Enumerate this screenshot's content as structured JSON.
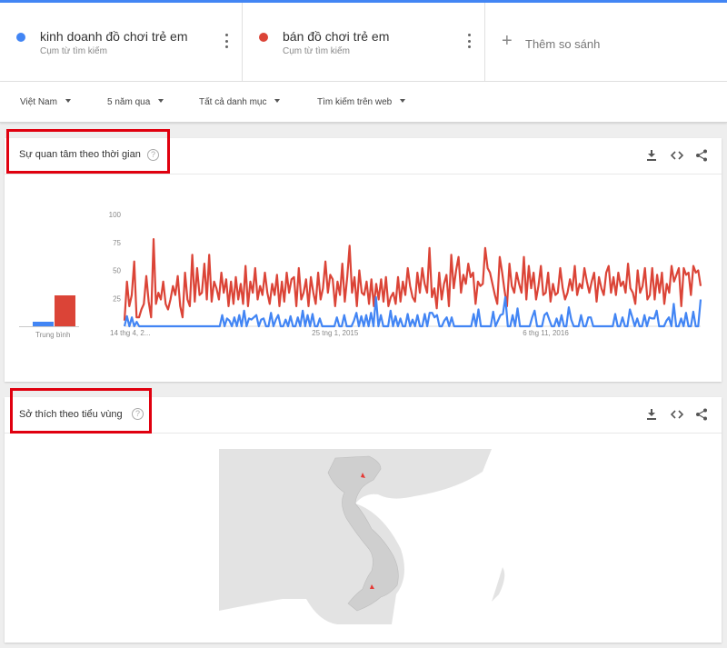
{
  "terms": [
    {
      "name": "kinh doanh đồ chơi trẻ em",
      "subtitle": "Cụm từ tìm kiếm",
      "color": "#4285f4"
    },
    {
      "name": "bán đồ chơi trẻ em",
      "subtitle": "Cụm từ tìm kiếm",
      "color": "#db4437"
    }
  ],
  "add_compare": {
    "label": "Thêm so sánh",
    "icon": "plus-icon"
  },
  "filters": [
    "Việt Nam",
    "5 năm qua",
    "Tất cả danh mục",
    "Tìm kiếm trên web"
  ],
  "interest_over_time": {
    "title": "Sự quan tâm theo thời gian",
    "average_label": "Trung bình",
    "icons": [
      "download-icon",
      "embed-code-icon",
      "share-icon"
    ]
  },
  "subregion_interest": {
    "title": "Sở thích theo tiểu vùng",
    "icons": [
      "download-icon",
      "embed-code-icon",
      "share-icon"
    ]
  },
  "chart_data": {
    "type": "line",
    "ylim": [
      0,
      100
    ],
    "y_ticks": [
      "100",
      "75",
      "50",
      "25"
    ],
    "x_tick_labels": [
      "14 thg 4, 2...",
      "25 tng 1, 2015",
      "6 thg 11, 2016"
    ],
    "x_tick_index": [
      0,
      87,
      174
    ],
    "averages": [
      {
        "name": "kinh doanh đồ chơi trẻ em",
        "value": 5,
        "color": "#4285f4"
      },
      {
        "name": "bán đồ chơi trẻ em",
        "value": 36,
        "color": "#db4437"
      }
    ],
    "series": [
      {
        "name": "bán đồ chơi trẻ em",
        "color": "#db4437",
        "values": [
          5,
          40,
          18,
          28,
          58,
          8,
          8,
          15,
          20,
          45,
          22,
          8,
          78,
          20,
          30,
          24,
          40,
          20,
          15,
          24,
          36,
          28,
          45,
          18,
          8,
          48,
          24,
          18,
          64,
          22,
          52,
          28,
          30,
          56,
          24,
          64,
          22,
          40,
          34,
          24,
          48,
          30,
          42,
          18,
          40,
          20,
          44,
          24,
          38,
          20,
          54,
          18,
          40,
          30,
          52,
          24,
          36,
          28,
          48,
          30,
          20,
          38,
          28,
          46,
          18,
          40,
          22,
          48,
          30,
          42,
          44,
          18,
          52,
          24,
          30,
          42,
          18,
          44,
          30,
          20,
          48,
          24,
          34,
          58,
          30,
          46,
          42,
          18,
          40,
          28,
          56,
          22,
          44,
          72,
          30,
          44,
          18,
          50,
          30,
          28,
          40,
          20,
          42,
          18,
          38,
          24,
          42,
          22,
          44,
          18,
          26,
          30,
          20,
          44,
          22,
          40,
          28,
          52,
          36,
          26,
          22,
          48,
          30,
          52,
          38,
          30,
          70,
          26,
          34,
          16,
          48,
          24,
          38,
          46,
          18,
          64,
          34,
          50,
          62,
          30,
          46,
          38,
          56,
          44,
          48,
          20,
          40,
          36,
          38,
          70,
          52,
          48,
          38,
          28,
          20,
          62,
          48,
          32,
          18,
          56,
          36,
          30,
          48,
          38,
          30,
          62,
          24,
          54,
          34,
          48,
          24,
          36,
          54,
          28,
          30,
          48,
          22,
          38,
          28,
          30,
          52,
          34,
          24,
          30,
          42,
          32,
          54,
          28,
          38,
          34,
          52,
          40,
          30,
          40,
          48,
          22,
          44,
          34,
          28,
          48,
          54,
          30,
          44,
          28,
          48,
          36,
          40,
          30,
          56,
          34,
          30,
          20,
          50,
          30,
          36,
          52,
          24,
          28,
          52,
          24,
          46,
          30,
          48,
          20,
          38,
          30,
          54,
          40,
          46,
          52,
          18,
          52,
          46,
          48,
          28,
          54,
          48,
          50,
          36
        ]
      },
      {
        "name": "kinh doanh đồ chơi trẻ em",
        "color": "#4285f4",
        "values": [
          0,
          9,
          0,
          8,
          0,
          4,
          0,
          0,
          0,
          0,
          0,
          0,
          0,
          0,
          0,
          0,
          0,
          0,
          0,
          0,
          0,
          0,
          0,
          0,
          0,
          0,
          0,
          0,
          0,
          0,
          0,
          0,
          0,
          0,
          0,
          0,
          0,
          0,
          0,
          0,
          10,
          0,
          7,
          5,
          0,
          8,
          0,
          10,
          0,
          14,
          0,
          7,
          6,
          8,
          10,
          0,
          6,
          7,
          0,
          0,
          12,
          0,
          6,
          10,
          0,
          0,
          6,
          0,
          9,
          0,
          0,
          8,
          0,
          14,
          0,
          10,
          0,
          11,
          0,
          0,
          7,
          0,
          0,
          0,
          0,
          0,
          0,
          8,
          0,
          0,
          10,
          0,
          0,
          0,
          5,
          12,
          0,
          9,
          0,
          10,
          0,
          12,
          0,
          26,
          0,
          10,
          0,
          0,
          0,
          14,
          0,
          9,
          0,
          7,
          0,
          0,
          11,
          0,
          6,
          0,
          10,
          0,
          0,
          11,
          0,
          12,
          12,
          8,
          10,
          0,
          0,
          5,
          8,
          0,
          8,
          0,
          0,
          0,
          0,
          0,
          0,
          0,
          0,
          11,
          0,
          15,
          0,
          0,
          0,
          0,
          0,
          13,
          0,
          5,
          10,
          11,
          26,
          0,
          0,
          10,
          0,
          16,
          0,
          0,
          0,
          0,
          0,
          8,
          14,
          0,
          0,
          0,
          10,
          12,
          6,
          0,
          0,
          7,
          0,
          10,
          0,
          0,
          17,
          6,
          0,
          0,
          0,
          10,
          0,
          0,
          8,
          8,
          0,
          0,
          0,
          0,
          0,
          0,
          0,
          0,
          0,
          11,
          0,
          0,
          8,
          0,
          0,
          15,
          8,
          0,
          7,
          0,
          0,
          10,
          0,
          8,
          7,
          7,
          14,
          0,
          0,
          0,
          5,
          8,
          0,
          20,
          0,
          0,
          7,
          0,
          12,
          0,
          0,
          13,
          0,
          0,
          24
        ]
      }
    ]
  }
}
